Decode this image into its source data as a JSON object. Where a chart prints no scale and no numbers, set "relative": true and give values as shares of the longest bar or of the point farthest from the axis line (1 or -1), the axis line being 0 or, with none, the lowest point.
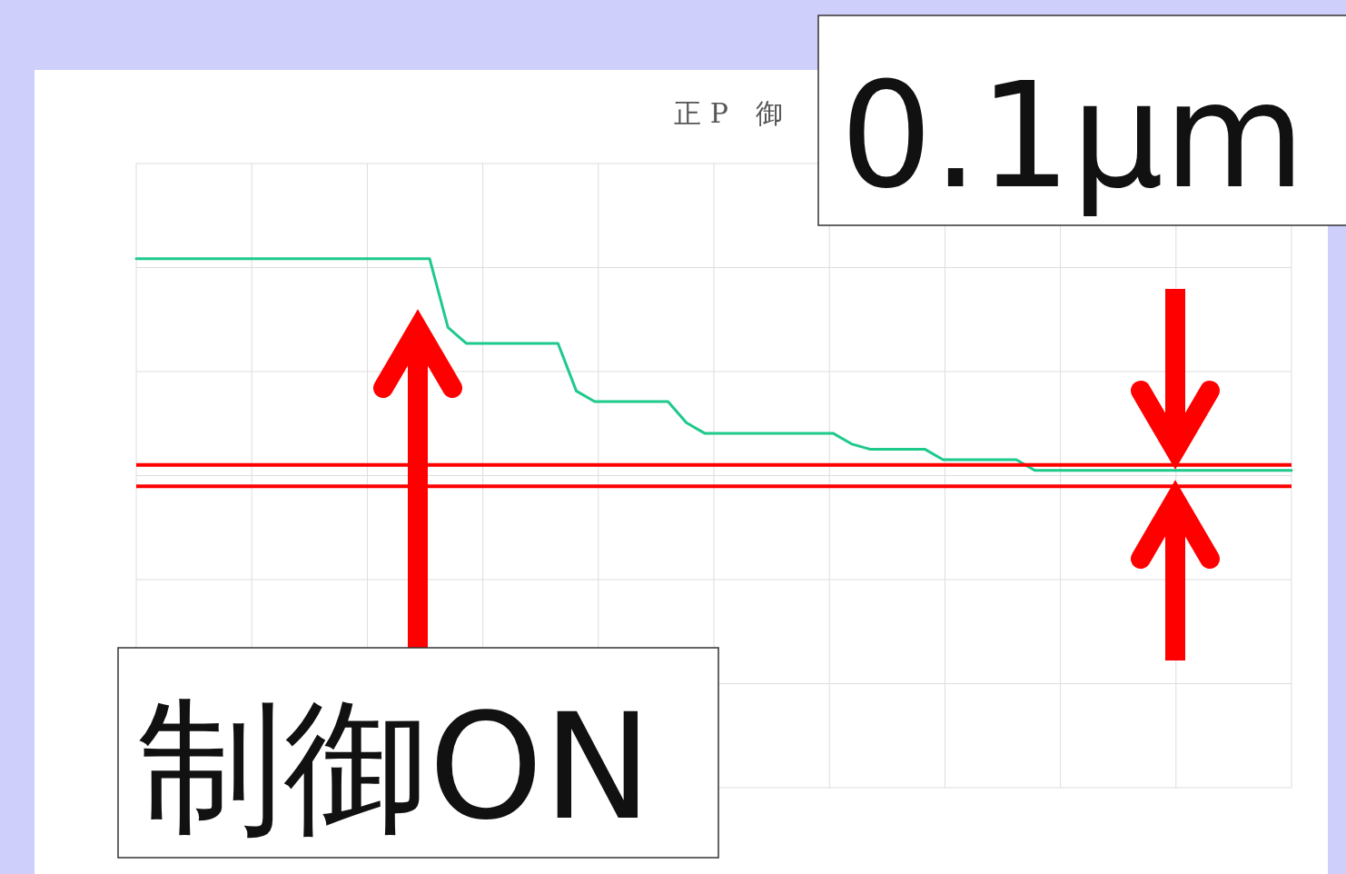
{
  "chart_data": {
    "type": "line",
    "title": "正 P　御",
    "relative": true,
    "grid": true,
    "categories": [
      null,
      null,
      null,
      null,
      null,
      null,
      null,
      null,
      null,
      null,
      null,
      null,
      null,
      null,
      null,
      null,
      null,
      null,
      null,
      null,
      null,
      null,
      null,
      null,
      null,
      null,
      null,
      null,
      null,
      null,
      null,
      null,
      null,
      null,
      null,
      null,
      null,
      null,
      null,
      null,
      null,
      null,
      null,
      null,
      null,
      null,
      null,
      null,
      null,
      null,
      null,
      null,
      null,
      null,
      null,
      null,
      null,
      null,
      null,
      null,
      null,
      null,
      null,
      null
    ],
    "series": [
      {
        "color": "#1ec98c",
        "values": [
          1,
          1,
          1,
          1,
          1,
          1,
          1,
          1,
          1,
          1,
          1,
          1,
          1,
          1,
          1,
          1,
          1,
          0.87,
          0.84,
          0.84,
          0.84,
          0.84,
          0.84,
          0.84,
          0.75,
          0.73,
          0.73,
          0.73,
          0.73,
          0.73,
          0.69,
          0.67,
          0.67,
          0.67,
          0.67,
          0.67,
          0.67,
          0.67,
          0.67,
          0.65,
          0.64,
          0.64,
          0.64,
          0.64,
          0.62,
          0.62,
          0.62,
          0.62,
          0.62,
          0.6,
          0.6,
          0.6,
          0.6,
          0.6,
          0.6,
          0.6,
          0.6,
          0.6,
          0.6,
          0.6,
          0.6,
          0.6,
          0.6,
          0.6
        ]
      }
    ],
    "ref_lines": [
      {
        "axis": "y",
        "value": 0.61,
        "color": "#ff0000"
      },
      {
        "axis": "y",
        "value": 0.57,
        "color": "#ff0000"
      }
    ],
    "annotations": [
      "0.1μm",
      "制御ON"
    ]
  }
}
